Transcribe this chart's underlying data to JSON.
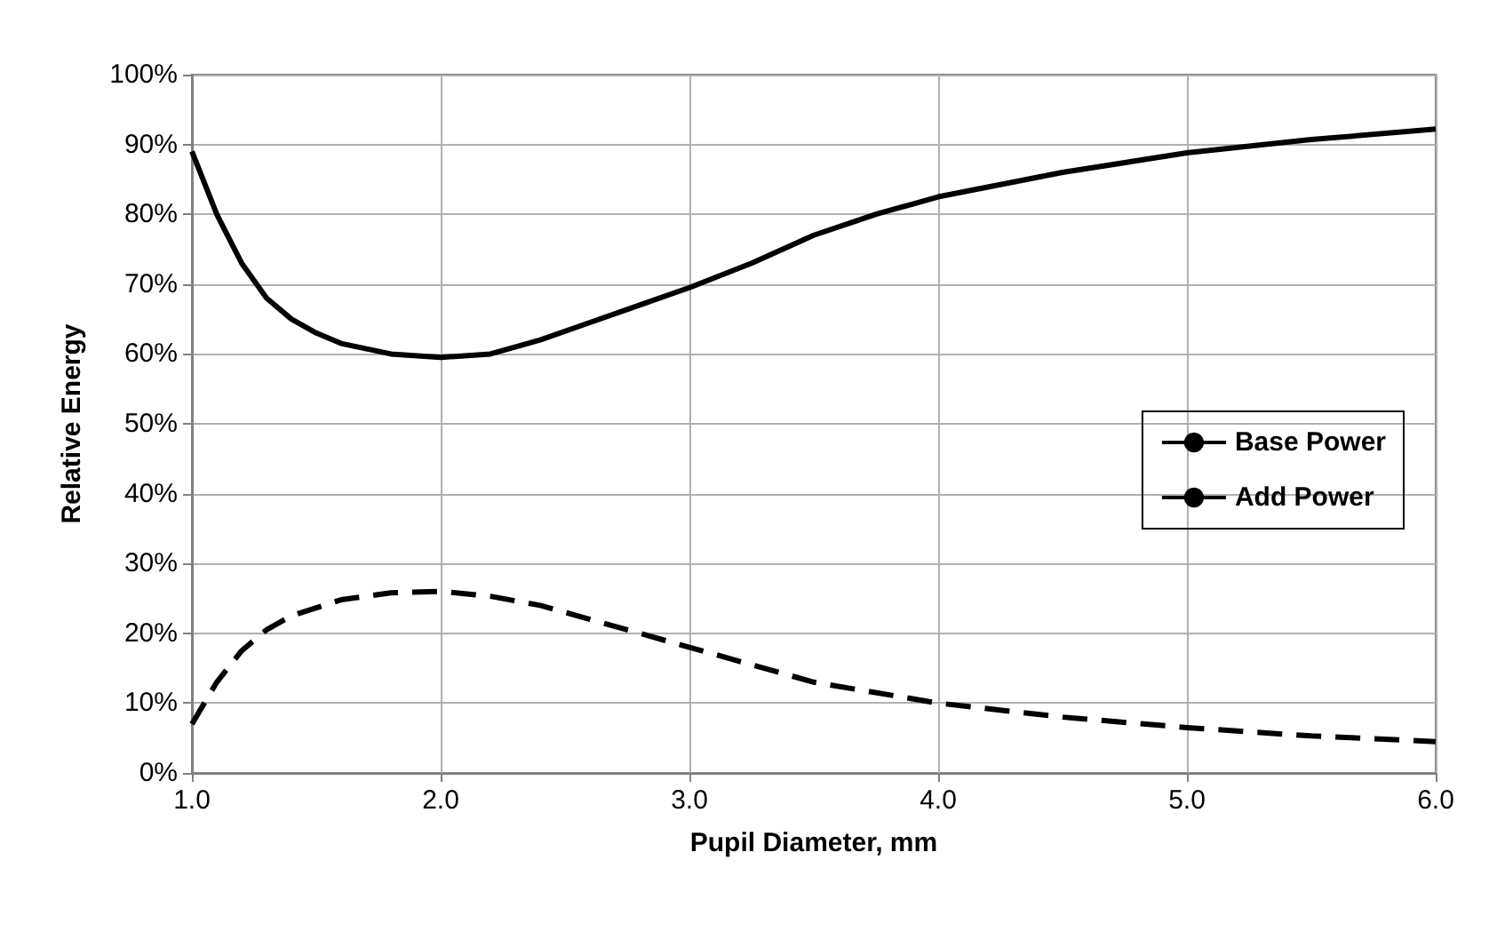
{
  "chart_data": {
    "type": "line",
    "xlabel": "Pupil Diameter, mm",
    "ylabel": "Relative Energy",
    "xlim": [
      1,
      6
    ],
    "xticks": [
      {
        "value": 1,
        "label": "1.0"
      },
      {
        "value": 2,
        "label": "2.0"
      },
      {
        "value": 3,
        "label": "3.0"
      },
      {
        "value": 4,
        "label": "4.0"
      },
      {
        "value": 5,
        "label": "5.0"
      },
      {
        "value": 6,
        "label": "6.0"
      }
    ],
    "ylim": [
      0,
      100
    ],
    "yticks": [
      {
        "value": 0,
        "label": "0%"
      },
      {
        "value": 10,
        "label": "10%"
      },
      {
        "value": 20,
        "label": "20%"
      },
      {
        "value": 30,
        "label": "30%"
      },
      {
        "value": 40,
        "label": "40%"
      },
      {
        "value": 50,
        "label": "50%"
      },
      {
        "value": 60,
        "label": "60%"
      },
      {
        "value": 70,
        "label": "70%"
      },
      {
        "value": 80,
        "label": "80%"
      },
      {
        "value": 90,
        "label": "90%"
      },
      {
        "value": 100,
        "label": "100%"
      }
    ],
    "grid": true,
    "legend": "right",
    "marker": "none",
    "series": [
      {
        "name": "Base Power",
        "color": "#000000",
        "line_style": "solid",
        "x": [
          1,
          1.1,
          1.2,
          1.3,
          1.4,
          1.5,
          1.6,
          1.8,
          2,
          2.2,
          2.4,
          2.6,
          2.8,
          3,
          3.25,
          3.5,
          3.75,
          4,
          4.5,
          5,
          5.5,
          6
        ],
        "values": [
          89,
          80,
          73,
          68,
          65,
          63,
          61.5,
          60,
          59.5,
          60,
          62,
          64.5,
          67,
          69.5,
          73,
          77,
          80,
          82.5,
          86,
          88.8,
          90.7,
          92.2
        ]
      },
      {
        "name": "Add Power",
        "color": "#000000",
        "line_style": "dashed",
        "x": [
          1,
          1.1,
          1.2,
          1.3,
          1.4,
          1.6,
          1.8,
          2,
          2.2,
          2.4,
          2.6,
          2.8,
          3,
          3.25,
          3.5,
          4,
          4.5,
          5,
          5.5,
          6
        ],
        "values": [
          7,
          13,
          17.5,
          20.5,
          22.5,
          24.8,
          25.8,
          26,
          25.3,
          24,
          22,
          20,
          18,
          15.5,
          13,
          10,
          8,
          6.5,
          5.3,
          4.5
        ]
      }
    ]
  }
}
